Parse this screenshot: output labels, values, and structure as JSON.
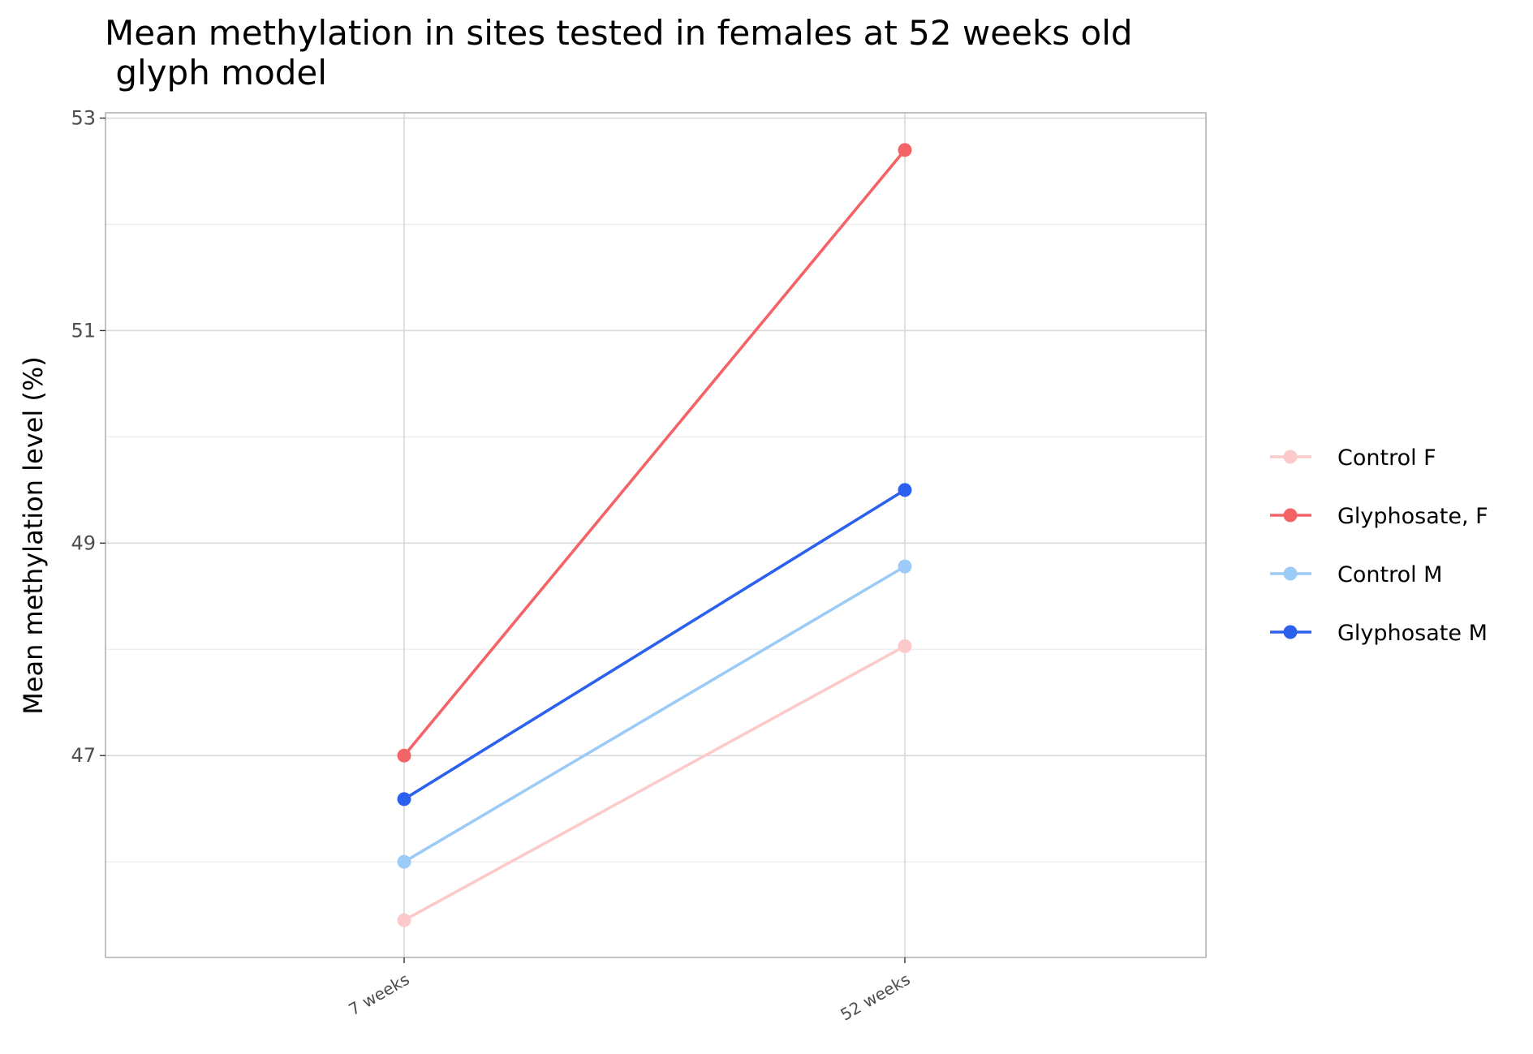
{
  "chart_data": {
    "type": "line",
    "title_line1": "Mean methylation in sites tested in females at 52 weeks old",
    "title_line2": " glyph model",
    "xlabel": "",
    "ylabel": "Mean methylation level (%)",
    "categories": [
      "7 weeks",
      "52 weeks"
    ],
    "ylim": [
      45.1,
      53.05
    ],
    "y_ticks": [
      47,
      49,
      51,
      53
    ],
    "y_minor": [
      46,
      48,
      50,
      52
    ],
    "grid": true,
    "legend_position": "right",
    "series": [
      {
        "name": "Control F",
        "color": "#fccaca",
        "values": [
          45.45,
          48.03
        ]
      },
      {
        "name": "Glyphosate, F",
        "color": "#f46466",
        "values": [
          47.0,
          52.7
        ]
      },
      {
        "name": "Control M",
        "color": "#9ccbf8",
        "values": [
          46.0,
          48.78
        ]
      },
      {
        "name": "Glyphosate M",
        "color": "#2c60ee",
        "values": [
          46.59,
          49.5
        ]
      }
    ]
  }
}
